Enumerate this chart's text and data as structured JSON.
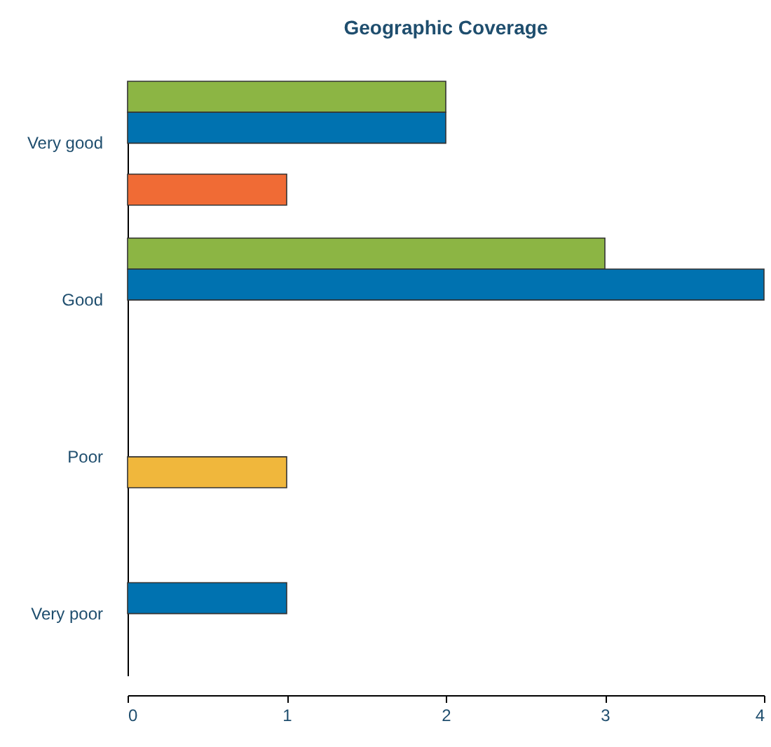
{
  "chart_data": {
    "type": "bar",
    "orientation": "horizontal",
    "title": "Geographic Coverage",
    "categories": [
      "Very good",
      "Good",
      "Poor",
      "Very poor"
    ],
    "series": [
      {
        "color": "#8cb544",
        "values": [
          2,
          3,
          null,
          null
        ]
      },
      {
        "color": "#0072b0",
        "values": [
          2,
          4,
          null,
          1
        ]
      },
      {
        "color": "#f0b73c",
        "values": [
          null,
          null,
          1,
          null
        ]
      },
      {
        "color": "#f06b35",
        "values": [
          1,
          null,
          null,
          null
        ]
      }
    ],
    "xlim": [
      0,
      4
    ],
    "xticks": [
      0,
      1,
      2,
      3,
      4
    ],
    "grid": false,
    "legend": false
  }
}
